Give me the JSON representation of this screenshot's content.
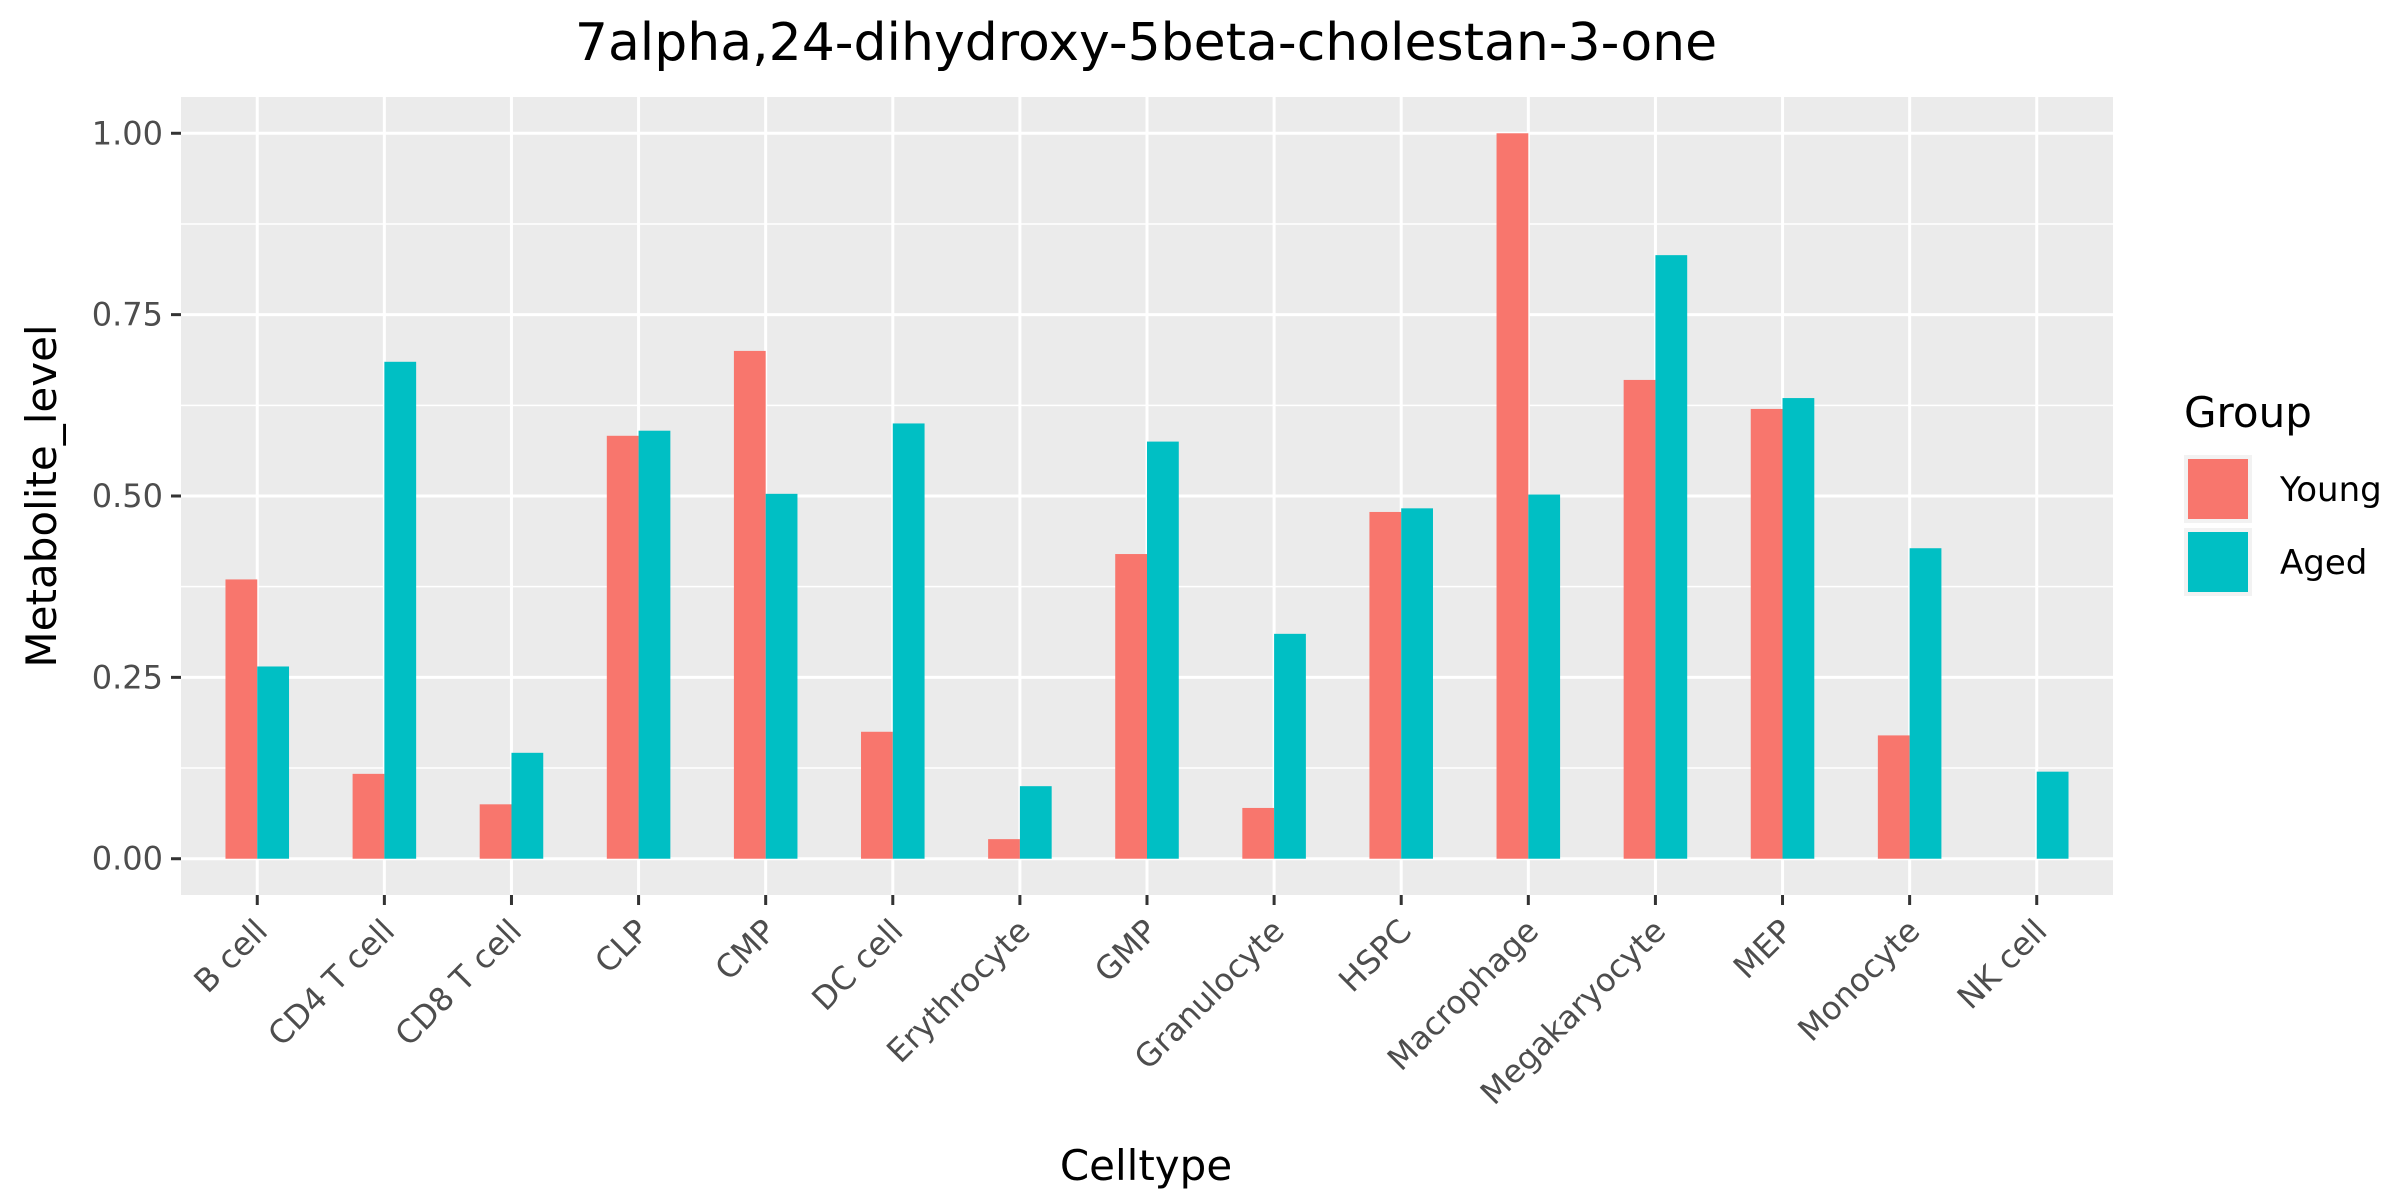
{
  "chart_data": {
    "type": "bar",
    "title": "7alpha,24-dihydroxy-5beta-cholestan-3-one",
    "xlabel": "Celltype",
    "ylabel": "Metabolite_level",
    "ylim": [
      -0.05,
      1.05
    ],
    "yticks": [
      "0.00",
      "0.25",
      "0.50",
      "0.75",
      "1.00"
    ],
    "grid": true,
    "legend": {
      "title": "Group",
      "position": "right"
    },
    "categories": [
      "B cell",
      "CD4 T cell",
      "CD8 T cell",
      "CLP",
      "CMP",
      "DC cell",
      "Erythrocyte",
      "GMP",
      "Granulocyte",
      "HSPC",
      "Macrophage",
      "Megakaryocyte",
      "MEP",
      "Monocyte",
      "NK cell"
    ],
    "series": [
      {
        "name": "Young",
        "color": "#F8766D",
        "values": [
          0.385,
          0.117,
          0.075,
          0.583,
          0.7,
          0.175,
          0.027,
          0.42,
          0.07,
          0.478,
          1.0,
          0.66,
          0.62,
          0.17,
          null
        ]
      },
      {
        "name": "Aged",
        "color": "#00BFC4",
        "values": [
          0.265,
          0.685,
          0.146,
          0.59,
          0.503,
          0.6,
          0.1,
          0.575,
          0.31,
          0.483,
          0.502,
          0.832,
          0.635,
          0.428,
          0.12
        ]
      }
    ]
  }
}
